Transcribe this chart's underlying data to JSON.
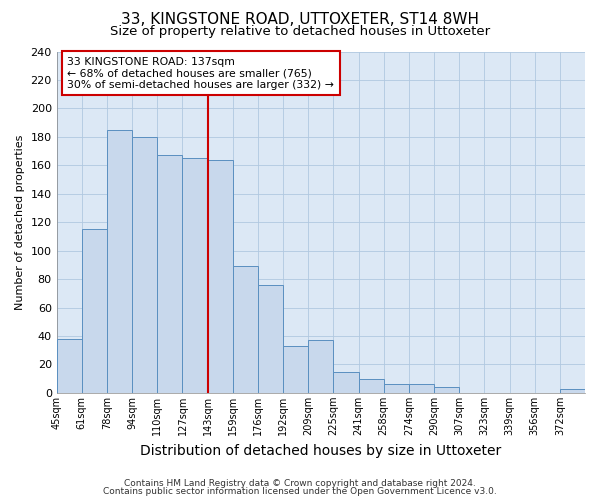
{
  "title": "33, KINGSTONE ROAD, UTTOXETER, ST14 8WH",
  "subtitle": "Size of property relative to detached houses in Uttoxeter",
  "xlabel": "Distribution of detached houses by size in Uttoxeter",
  "ylabel": "Number of detached properties",
  "bin_labels": [
    "45sqm",
    "61sqm",
    "78sqm",
    "94sqm",
    "110sqm",
    "127sqm",
    "143sqm",
    "159sqm",
    "176sqm",
    "192sqm",
    "209sqm",
    "225sqm",
    "241sqm",
    "258sqm",
    "274sqm",
    "290sqm",
    "307sqm",
    "323sqm",
    "339sqm",
    "356sqm",
    "372sqm"
  ],
  "bar_heights": [
    38,
    115,
    185,
    180,
    167,
    165,
    164,
    89,
    76,
    33,
    37,
    15,
    10,
    6,
    6,
    4,
    0,
    0,
    0,
    0,
    3
  ],
  "bar_color": "#c8d8ec",
  "bar_edge_color": "#5a8fc0",
  "property_line_label": "33 KINGSTONE ROAD: 137sqm",
  "annotation_smaller": "← 68% of detached houses are smaller (765)",
  "annotation_larger": "30% of semi-detached houses are larger (332) →",
  "annotation_box_color": "#ffffff",
  "annotation_box_edge": "#cc0000",
  "vline_color": "#cc0000",
  "vline_x_index": 6,
  "ylim": [
    0,
    240
  ],
  "yticks": [
    0,
    20,
    40,
    60,
    80,
    100,
    120,
    140,
    160,
    180,
    200,
    220,
    240
  ],
  "footer1": "Contains HM Land Registry data © Crown copyright and database right 2024.",
  "footer2": "Contains public sector information licensed under the Open Government Licence v3.0.",
  "bg_color": "#ffffff",
  "plot_bg_color": "#dce8f5",
  "grid_color": "#b0c8e0",
  "title_fontsize": 11,
  "subtitle_fontsize": 9.5,
  "xlabel_fontsize": 10,
  "ylabel_fontsize": 8
}
